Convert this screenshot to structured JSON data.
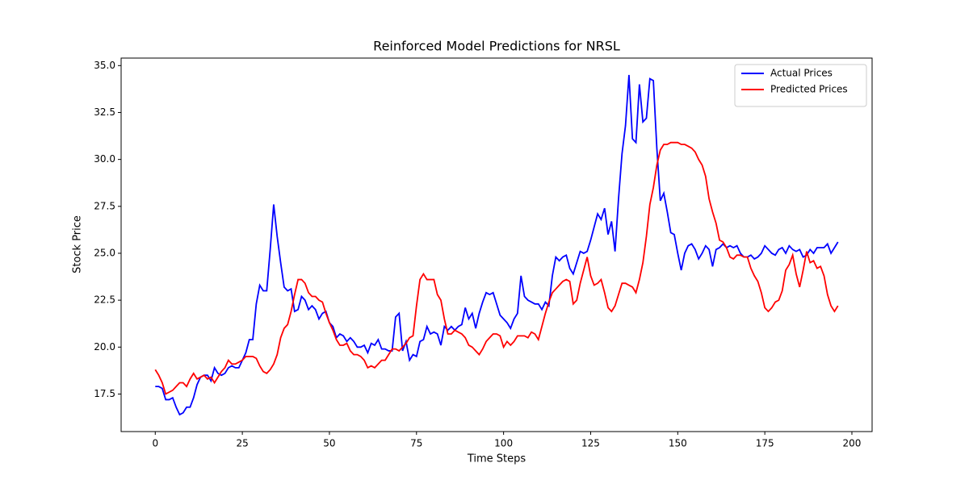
{
  "chart_data": {
    "type": "line",
    "title": "Reinforced Model Predictions for NRSL",
    "x_label": "Time Steps",
    "y_label": "Stock Price",
    "x": [
      0,
      1,
      2,
      3,
      4,
      5,
      6,
      7,
      8,
      9,
      10,
      11,
      12,
      13,
      14,
      15,
      16,
      17,
      18,
      19,
      20,
      21,
      22,
      23,
      24,
      25,
      26,
      27,
      28,
      29,
      30,
      31,
      32,
      33,
      34,
      35,
      36,
      37,
      38,
      39,
      40,
      41,
      42,
      43,
      44,
      45,
      46,
      47,
      48,
      49,
      50,
      51,
      52,
      53,
      54,
      55,
      56,
      57,
      58,
      59,
      60,
      61,
      62,
      63,
      64,
      65,
      66,
      67,
      68,
      69,
      70,
      71,
      72,
      73,
      74,
      75,
      76,
      77,
      78,
      79,
      80,
      81,
      82,
      83,
      84,
      85,
      86,
      87,
      88,
      89,
      90,
      91,
      92,
      93,
      94,
      95,
      96,
      97,
      98,
      99,
      100,
      101,
      102,
      103,
      104,
      105,
      106,
      107,
      108,
      109,
      110,
      111,
      112,
      113,
      114,
      115,
      116,
      117,
      118,
      119,
      120,
      121,
      122,
      123,
      124,
      125,
      126,
      127,
      128,
      129,
      130,
      131,
      132,
      133,
      134,
      135,
      136,
      137,
      138,
      139,
      140,
      141,
      142,
      143,
      144,
      145,
      146,
      147,
      148,
      149,
      150,
      151,
      152,
      153,
      154,
      155,
      156,
      157,
      158,
      159,
      160,
      161,
      162,
      163,
      164,
      165,
      166,
      167,
      168,
      169,
      170,
      171,
      172,
      173,
      174,
      175,
      176,
      177,
      178,
      179,
      180,
      181,
      182,
      183,
      184,
      185,
      186,
      187,
      188,
      189,
      190,
      191,
      192,
      193,
      194,
      195,
      196
    ],
    "series": [
      {
        "name": "Actual Prices",
        "color": "#0000ff",
        "values": [
          17.9,
          17.9,
          17.8,
          17.2,
          17.2,
          17.3,
          16.8,
          16.4,
          16.5,
          16.8,
          16.8,
          17.3,
          18.0,
          18.4,
          18.5,
          18.5,
          18.2,
          18.9,
          18.6,
          18.5,
          18.6,
          18.9,
          19.0,
          18.9,
          18.9,
          19.3,
          19.7,
          20.4,
          20.4,
          22.3,
          23.3,
          23.0,
          23.0,
          25.2,
          27.6,
          25.9,
          24.5,
          23.2,
          23.0,
          23.1,
          21.9,
          22.0,
          22.7,
          22.5,
          22.0,
          22.2,
          22.0,
          21.5,
          21.8,
          21.9,
          21.3,
          21.1,
          20.5,
          20.7,
          20.6,
          20.3,
          20.5,
          20.3,
          20.0,
          20.0,
          20.1,
          19.7,
          20.2,
          20.1,
          20.4,
          19.9,
          19.9,
          19.8,
          19.8,
          21.6,
          21.8,
          19.8,
          20.3,
          19.3,
          19.6,
          19.5,
          20.3,
          20.4,
          21.1,
          20.7,
          20.8,
          20.7,
          20.1,
          21.1,
          20.9,
          21.1,
          20.9,
          21.1,
          21.2,
          22.1,
          21.5,
          21.8,
          21.0,
          21.8,
          22.4,
          22.9,
          22.8,
          22.9,
          22.3,
          21.7,
          21.5,
          21.3,
          21.0,
          21.5,
          21.8,
          23.8,
          22.7,
          22.5,
          22.4,
          22.3,
          22.3,
          22.0,
          22.4,
          22.2,
          23.8,
          24.8,
          24.6,
          24.8,
          24.9,
          24.2,
          23.9,
          24.5,
          25.1,
          25.0,
          25.1,
          25.7,
          26.4,
          27.1,
          26.8,
          27.4,
          26.0,
          26.7,
          25.1,
          27.9,
          30.3,
          31.8,
          34.5,
          31.1,
          30.9,
          34.0,
          32.0,
          32.2,
          34.3,
          34.2,
          30.6,
          27.8,
          28.2,
          27.2,
          26.1,
          26.0,
          25.0,
          24.1,
          25.0,
          25.4,
          25.5,
          25.2,
          24.7,
          25.0,
          25.4,
          25.2,
          24.3,
          25.2,
          25.3,
          25.5,
          25.3,
          25.4,
          25.3,
          25.4,
          25.0,
          24.8,
          24.8,
          24.9,
          24.7,
          24.8,
          25.0,
          25.4,
          25.2,
          25.0,
          24.9,
          25.2,
          25.3,
          25.0,
          25.4,
          25.2,
          25.1,
          25.2,
          24.8,
          24.9,
          25.2,
          25.0,
          25.3,
          25.3,
          25.3,
          25.5,
          25.0,
          25.3,
          25.6
        ]
      },
      {
        "name": "Predicted Prices",
        "color": "#ff0000",
        "values": [
          18.8,
          18.5,
          18.1,
          17.5,
          17.6,
          17.7,
          17.9,
          18.1,
          18.1,
          17.9,
          18.3,
          18.6,
          18.3,
          18.4,
          18.5,
          18.3,
          18.4,
          18.1,
          18.4,
          18.7,
          18.9,
          19.3,
          19.1,
          19.1,
          19.2,
          19.3,
          19.5,
          19.5,
          19.5,
          19.4,
          19.0,
          18.7,
          18.6,
          18.8,
          19.1,
          19.6,
          20.5,
          21.0,
          21.2,
          21.9,
          22.8,
          23.6,
          23.6,
          23.4,
          22.9,
          22.7,
          22.7,
          22.5,
          22.4,
          21.8,
          21.3,
          20.9,
          20.4,
          20.1,
          20.1,
          20.2,
          19.8,
          19.6,
          19.6,
          19.5,
          19.3,
          18.9,
          19.0,
          18.9,
          19.1,
          19.3,
          19.3,
          19.6,
          19.9,
          19.9,
          19.8,
          20.0,
          20.2,
          20.5,
          20.6,
          22.2,
          23.6,
          23.9,
          23.6,
          23.6,
          23.6,
          22.8,
          22.5,
          21.5,
          20.7,
          20.7,
          20.9,
          20.8,
          20.7,
          20.5,
          20.1,
          20.0,
          19.8,
          19.6,
          19.9,
          20.3,
          20.5,
          20.7,
          20.7,
          20.6,
          20.0,
          20.3,
          20.1,
          20.3,
          20.6,
          20.6,
          20.6,
          20.5,
          20.8,
          20.7,
          20.4,
          21.1,
          21.8,
          22.4,
          22.9,
          23.1,
          23.3,
          23.5,
          23.6,
          23.5,
          22.3,
          22.5,
          23.4,
          24.1,
          24.8,
          23.8,
          23.3,
          23.4,
          23.6,
          22.9,
          22.1,
          21.9,
          22.2,
          22.8,
          23.4,
          23.4,
          23.3,
          23.2,
          22.9,
          23.6,
          24.5,
          25.9,
          27.6,
          28.5,
          29.7,
          30.5,
          30.8,
          30.8,
          30.9,
          30.9,
          30.9,
          30.8,
          30.8,
          30.7,
          30.6,
          30.4,
          30.0,
          29.7,
          29.1,
          27.9,
          27.2,
          26.6,
          25.7,
          25.6,
          25.3,
          24.8,
          24.7,
          24.9,
          24.9,
          24.8,
          24.8,
          24.2,
          23.8,
          23.5,
          22.9,
          22.1,
          21.9,
          22.1,
          22.4,
          22.5,
          23.0,
          24.1,
          24.4,
          24.9,
          23.9,
          23.2,
          24.1,
          25.1,
          24.5,
          24.6,
          24.2,
          24.3,
          23.8,
          22.8,
          22.2,
          21.9,
          22.2
        ]
      }
    ],
    "xlim": [
      -9.8,
      205.8
    ],
    "ylim": [
      15.5,
      35.4
    ],
    "xticks": [
      0,
      25,
      50,
      75,
      100,
      125,
      150,
      175,
      200
    ],
    "yticks": [
      17.5,
      {
        "value": 20,
        "label": "20.0"
      },
      22.5,
      {
        "value": 25,
        "label": "25.0"
      },
      27.5,
      {
        "value": 30,
        "label": "30.0"
      },
      32.5,
      {
        "value": 35,
        "label": "35.0"
      }
    ],
    "grid": false,
    "legend": "upper right"
  }
}
